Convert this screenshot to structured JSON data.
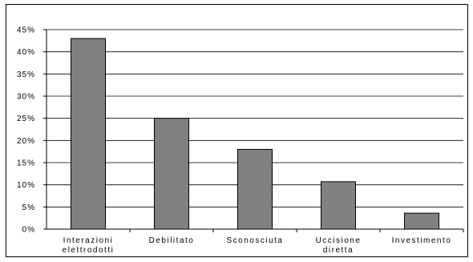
{
  "chart_data": {
    "type": "bar",
    "title": "",
    "xlabel": "",
    "ylabel": "",
    "categories": [
      [
        "Interazioni",
        "elettrodotti"
      ],
      [
        "Debilitato"
      ],
      [
        "Sconosciuta"
      ],
      [
        "Uccisione",
        "diretta"
      ],
      [
        "Investimento"
      ]
    ],
    "values": [
      43,
      25,
      18,
      10.7,
      3.6
    ],
    "ylim": [
      0,
      45
    ],
    "ytick_labels": [
      "0%",
      "5%",
      "10%",
      "15%",
      "20%",
      "25%",
      "30%",
      "35%",
      "40%",
      "45%"
    ],
    "grid": true,
    "bar_color": "#808080",
    "legend": "none"
  }
}
